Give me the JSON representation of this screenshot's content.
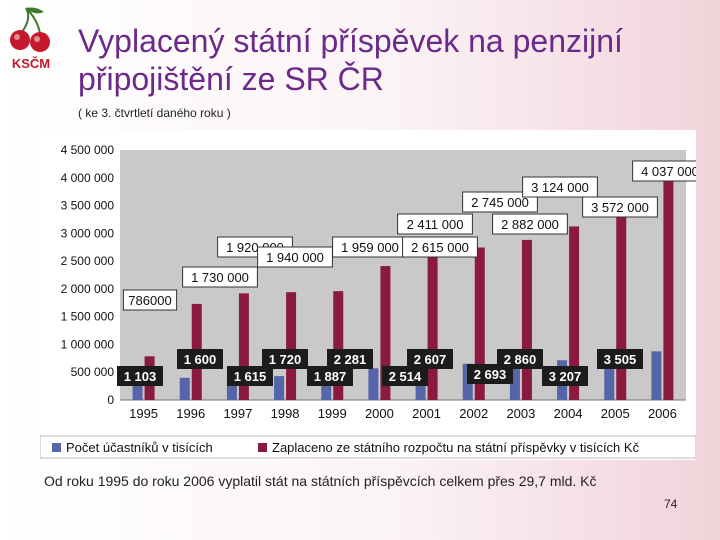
{
  "title": "Vyplacený státní příspěvek na penzijní připojištění ze SR ČR",
  "subtitle": "( ke 3. čtvrtletí daného roku )",
  "logo_text": "KSČM",
  "footnote": "Od roku 1995 do roku 2006 vyplatil stát na státních příspěvcích celkem přes 29,7 mld. Kč",
  "page_number": "74",
  "colors": {
    "participants": "#5565a8",
    "paid": "#8b1a3f",
    "title": "#6b2a8a"
  },
  "chart_data": {
    "type": "bar",
    "categories": [
      "1995",
      "1996",
      "1997",
      "1998",
      "1999",
      "2000",
      "2001",
      "2002",
      "2003",
      "2004",
      "2005",
      "2006"
    ],
    "series": [
      {
        "name": "Počet účastníků v tisících",
        "values": [
          1103,
          1600,
          1615,
          1720,
          1887,
          2281,
          2514,
          2607,
          2693,
          2860,
          3207,
          3505
        ],
        "labels": [
          "1 103",
          "1 600",
          "1 615",
          "1 720",
          "1 887",
          "2 281",
          "2 514",
          "2 607",
          "2 693",
          "2 860",
          "3 207",
          "3 505"
        ]
      },
      {
        "name": "Zaplaceno ze státního rozpočtu na státní příspěvky v tisících Kč",
        "values": [
          786000,
          1730000,
          1920000,
          1940000,
          1959000,
          2411000,
          2615000,
          2745000,
          2882000,
          3124000,
          3572000,
          4037000
        ],
        "labels": [
          "786000",
          "1 730 000",
          "1 920 000",
          "1 940 000",
          "1 959 000",
          "2 411 000",
          "2 615 000",
          "2 745 000",
          "2 882 000",
          "3 124 000",
          "3 572 000",
          "4 037 000"
        ]
      }
    ],
    "ylim": [
      0,
      4500000
    ],
    "yticks": [
      "0",
      "500 000",
      "1 000 000",
      "1 500 000",
      "2 000 000",
      "2 500 000",
      "3 000 000",
      "3 500 000",
      "4 000 000",
      "4 500 000"
    ],
    "legend": "bottom"
  }
}
